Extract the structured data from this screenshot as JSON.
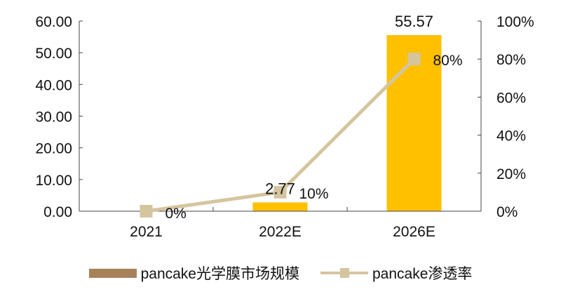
{
  "chart_data": {
    "type": "bar+line",
    "categories": [
      "2021",
      "2022E",
      "2026E"
    ],
    "series": [
      {
        "name": "pancake光学膜市场规模",
        "type": "bar",
        "axis": "left",
        "values": [
          0,
          2.77,
          55.57
        ],
        "data_labels": [
          "",
          "2.77",
          "55.57"
        ],
        "color": "#FFC000",
        "legend_color": "#A6825A"
      },
      {
        "name": "pancake渗透率",
        "type": "line",
        "axis": "right",
        "values": [
          0,
          10,
          80
        ],
        "data_labels": [
          "0%",
          "10%",
          "80%"
        ],
        "color": "#D5C59F",
        "marker": "square"
      }
    ],
    "left_axis": {
      "ticks": [
        "0.00",
        "10.00",
        "20.00",
        "30.00",
        "40.00",
        "50.00",
        "60.00"
      ],
      "ylim": [
        0,
        60
      ]
    },
    "right_axis": {
      "ticks": [
        "0%",
        "20%",
        "40%",
        "60%",
        "80%",
        "100%"
      ],
      "ylim": [
        0,
        100
      ]
    },
    "grid": false,
    "legend_position": "bottom"
  }
}
